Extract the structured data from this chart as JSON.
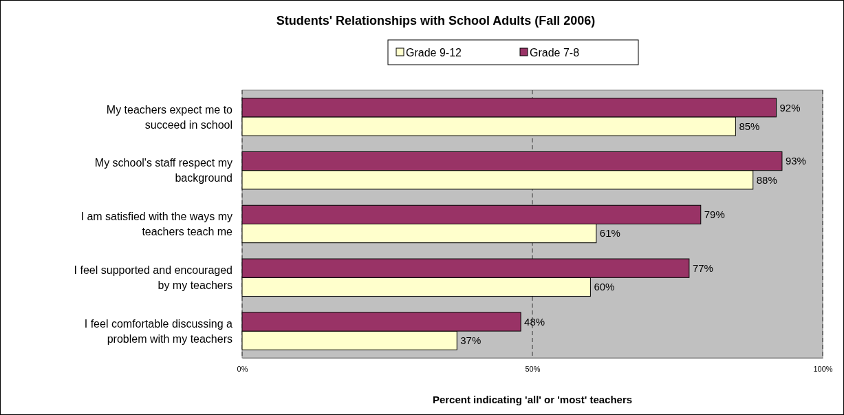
{
  "chart_data": {
    "type": "bar",
    "orientation": "horizontal",
    "title": "Students' Relationships with School Adults (Fall 2006)",
    "xlabel": "Percent indicating 'all' or 'most' teachers",
    "categories": [
      "My teachers expect me to succeed in school",
      "My school's staff respect my background",
      "I am satisfied with the ways my teachers teach me",
      "I feel supported and encouraged by my teachers",
      "I feel comfortable discussing a problem with my teachers"
    ],
    "series": [
      {
        "name": "Grade 9-12",
        "color": "#ffffcc",
        "values": [
          85,
          88,
          61,
          60,
          37
        ],
        "value_labels": [
          "85%",
          "88%",
          "61%",
          "60%",
          "37%"
        ]
      },
      {
        "name": "Grade 7-8",
        "color": "#993366",
        "values": [
          92,
          93,
          79,
          77,
          48
        ],
        "value_labels": [
          "92%",
          "93%",
          "79%",
          "77%",
          "48%"
        ]
      }
    ],
    "xlim": [
      0,
      100
    ],
    "xticks": [
      {
        "value": 0,
        "label": "0%"
      },
      {
        "value": 50,
        "label": "50%"
      },
      {
        "value": 100,
        "label": "100%"
      }
    ],
    "grid": "x",
    "legend": "top"
  }
}
